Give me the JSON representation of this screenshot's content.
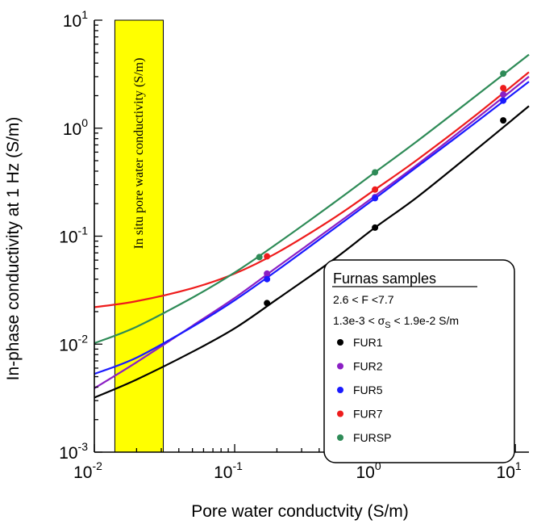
{
  "chart_data": {
    "type": "scatter",
    "xlabel": "Pore water conductvity (S/m)",
    "ylabel": "In-phase conductivity at 1 Hz (S/m)",
    "xscale": "log",
    "yscale": "log",
    "xlim": [
      0.01,
      12.5
    ],
    "ylim": [
      0.001,
      10
    ],
    "x_ticks": [
      {
        "value": 0.01,
        "base": "10",
        "exp": "-2"
      },
      {
        "value": 0.1,
        "base": "10",
        "exp": "-1"
      },
      {
        "value": 1,
        "base": "10",
        "exp": "0"
      },
      {
        "value": 10,
        "base": "10",
        "exp": "1"
      }
    ],
    "y_ticks": [
      {
        "value": 0.001,
        "base": "10",
        "exp": "-3"
      },
      {
        "value": 0.01,
        "base": "10",
        "exp": "-2"
      },
      {
        "value": 0.1,
        "base": "10",
        "exp": "-1"
      },
      {
        "value": 1,
        "base": "10",
        "exp": "0"
      },
      {
        "value": 10,
        "base": "10",
        "exp": "1"
      }
    ],
    "band": {
      "label": "In situ pore water conductivity (S/m)",
      "x_range": [
        0.014,
        0.031
      ],
      "color": "#ffff00"
    },
    "grid": false,
    "legend_position": "bottom-right",
    "legend": {
      "title": "Furnas samples",
      "line1": "2.6 < F <7.7",
      "line2_prefix": "1.3e-3 <  σ",
      "line2_sub": "S",
      "line2_suffix": " < 1.9e-2 S/m"
    },
    "series": [
      {
        "name": "FUR1",
        "color": "#000000",
        "points": [
          {
            "x": 0.17,
            "y": 0.024
          },
          {
            "x": 1.0,
            "y": 0.12
          },
          {
            "x": 8.2,
            "y": 1.18
          }
        ],
        "curve": [
          {
            "x": 0.01,
            "y": 0.0032
          },
          {
            "x": 0.02,
            "y": 0.0047
          },
          {
            "x": 0.05,
            "y": 0.0085
          },
          {
            "x": 0.1,
            "y": 0.014
          },
          {
            "x": 0.2,
            "y": 0.026
          },
          {
            "x": 0.5,
            "y": 0.06
          },
          {
            "x": 1.0,
            "y": 0.12
          },
          {
            "x": 2.0,
            "y": 0.23
          },
          {
            "x": 5.0,
            "y": 0.6
          },
          {
            "x": 12.5,
            "y": 1.6
          }
        ]
      },
      {
        "name": "FUR2",
        "color": "#8b1fc4",
        "points": [
          {
            "x": 0.17,
            "y": 0.045
          },
          {
            "x": 1.0,
            "y": 0.23
          },
          {
            "x": 8.2,
            "y": 2.05
          }
        ],
        "curve": [
          {
            "x": 0.01,
            "y": 0.0039
          },
          {
            "x": 0.02,
            "y": 0.0068
          },
          {
            "x": 0.05,
            "y": 0.0148
          },
          {
            "x": 0.1,
            "y": 0.0268
          },
          {
            "x": 0.2,
            "y": 0.0515
          },
          {
            "x": 0.5,
            "y": 0.122
          },
          {
            "x": 1.0,
            "y": 0.236
          },
          {
            "x": 2.0,
            "y": 0.46
          },
          {
            "x": 5.0,
            "y": 1.16
          },
          {
            "x": 12.5,
            "y": 3.0
          }
        ]
      },
      {
        "name": "FUR5",
        "color": "#1a1aff",
        "points": [
          {
            "x": 0.17,
            "y": 0.04
          },
          {
            "x": 1.0,
            "y": 0.225
          },
          {
            "x": 8.2,
            "y": 1.8
          }
        ],
        "curve": [
          {
            "x": 0.01,
            "y": 0.0053
          },
          {
            "x": 0.02,
            "y": 0.0075
          },
          {
            "x": 0.05,
            "y": 0.0145
          },
          {
            "x": 0.1,
            "y": 0.0255
          },
          {
            "x": 0.2,
            "y": 0.048
          },
          {
            "x": 0.5,
            "y": 0.115
          },
          {
            "x": 1.0,
            "y": 0.224
          },
          {
            "x": 2.0,
            "y": 0.44
          },
          {
            "x": 5.0,
            "y": 1.08
          },
          {
            "x": 12.5,
            "y": 2.7
          }
        ]
      },
      {
        "name": "FUR7",
        "color": "#ee1c1c",
        "points": [
          {
            "x": 0.17,
            "y": 0.065
          },
          {
            "x": 1.0,
            "y": 0.27
          },
          {
            "x": 8.2,
            "y": 2.35
          }
        ],
        "curve": [
          {
            "x": 0.01,
            "y": 0.022
          },
          {
            "x": 0.02,
            "y": 0.025
          },
          {
            "x": 0.05,
            "y": 0.033
          },
          {
            "x": 0.1,
            "y": 0.045
          },
          {
            "x": 0.2,
            "y": 0.07
          },
          {
            "x": 0.5,
            "y": 0.145
          },
          {
            "x": 1.0,
            "y": 0.27
          },
          {
            "x": 2.0,
            "y": 0.51
          },
          {
            "x": 5.0,
            "y": 1.26
          },
          {
            "x": 12.5,
            "y": 3.3
          }
        ]
      },
      {
        "name": "FURSP",
        "color": "#2e8b57",
        "points": [
          {
            "x": 0.15,
            "y": 0.064
          },
          {
            "x": 1.0,
            "y": 0.39
          },
          {
            "x": 8.2,
            "y": 3.2
          }
        ],
        "curve": [
          {
            "x": 0.01,
            "y": 0.0102
          },
          {
            "x": 0.02,
            "y": 0.0145
          },
          {
            "x": 0.05,
            "y": 0.027
          },
          {
            "x": 0.1,
            "y": 0.046
          },
          {
            "x": 0.2,
            "y": 0.085
          },
          {
            "x": 0.5,
            "y": 0.2
          },
          {
            "x": 1.0,
            "y": 0.39
          },
          {
            "x": 2.0,
            "y": 0.76
          },
          {
            "x": 5.0,
            "y": 1.9
          },
          {
            "x": 12.5,
            "y": 4.8
          }
        ]
      }
    ]
  }
}
